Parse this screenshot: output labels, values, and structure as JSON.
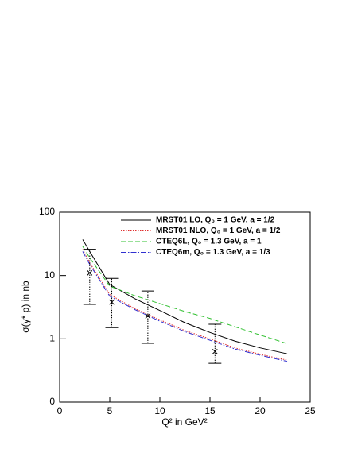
{
  "chart_data": {
    "type": "line",
    "xlabel": "Q² in GeV²",
    "ylabel": "σ(γ* p) in nb",
    "xlim": [
      0,
      25
    ],
    "xticks": [
      0,
      5,
      10,
      15,
      20,
      25
    ],
    "ylim": [
      0.1,
      100
    ],
    "log_y": true,
    "yticks": [
      {
        "value": 0.1,
        "label": "0"
      },
      1,
      10,
      100
    ],
    "legend": "upper right",
    "x": [
      2.3,
      3,
      5,
      7.5,
      10,
      12.5,
      15,
      17.5,
      20,
      22.7
    ],
    "series": [
      {
        "name": "MRST01 LO, Q₀ = 1 GeV, a = 1/2",
        "color": "#000000",
        "dash": "none",
        "values": [
          37,
          24,
          7.2,
          4.3,
          2.8,
          1.8,
          1.26,
          0.92,
          0.72,
          0.58
        ]
      },
      {
        "name": "MRST01 NLO, Q₀ = 1 GeV, a = 1/2",
        "color": "#e03030",
        "dash": "1.5,1.5",
        "values": [
          26,
          16,
          5.0,
          3.0,
          2.0,
          1.35,
          1.0,
          0.72,
          0.57,
          0.46
        ]
      },
      {
        "name": "CTEQ6L, Q₀ = 1.3 GeV, a = 1",
        "color": "#30c030",
        "dash": "6,3",
        "values": [
          29,
          19,
          6.8,
          4.8,
          3.6,
          2.7,
          2.1,
          1.55,
          1.15,
          0.84
        ]
      },
      {
        "name": "CTEQ6m, Q₀ = 1.3 GeV, a = 1/3",
        "color": "#3030d0",
        "dash": "7,2,1.5,2",
        "values": [
          24,
          15,
          4.7,
          2.9,
          1.9,
          1.3,
          0.95,
          0.69,
          0.55,
          0.44
        ]
      }
    ],
    "points": {
      "x": [
        3,
        5.2,
        8.8,
        15.5
      ],
      "values": [
        11,
        3.8,
        2.3,
        0.63
      ],
      "low": [
        3.5,
        1.5,
        0.85,
        0.41
      ],
      "high": [
        26,
        9,
        5.7,
        1.7
      ]
    }
  }
}
